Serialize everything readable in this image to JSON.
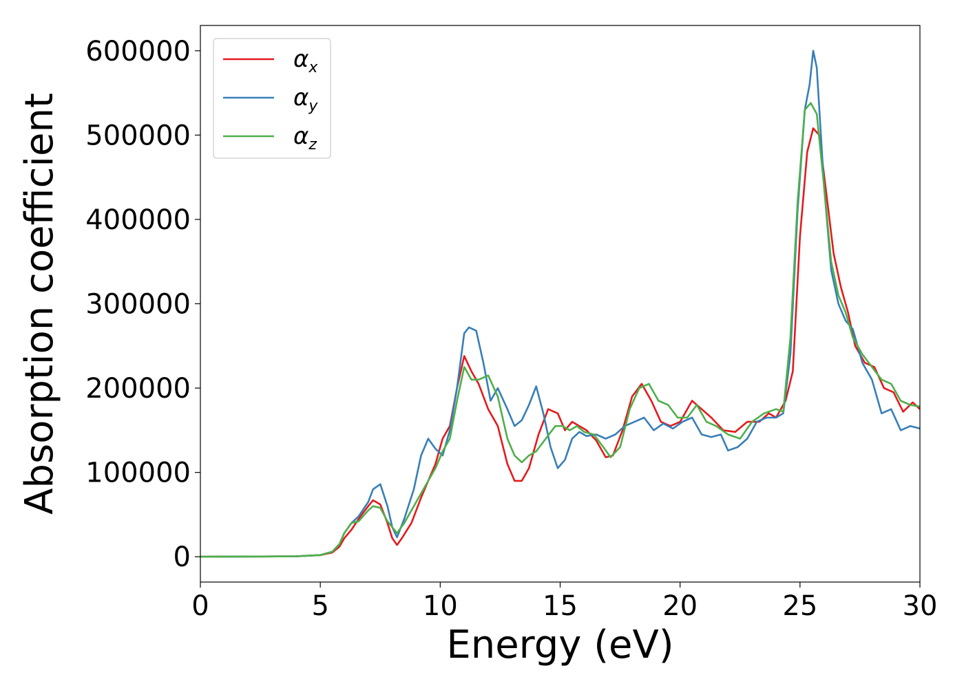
{
  "chart_data": {
    "type": "line",
    "title": "",
    "xlabel": "Energy (eV)",
    "ylabel": "Absorption coefficient",
    "xlim": [
      0,
      30
    ],
    "ylim": [
      -30000,
      630000
    ],
    "xticks": [
      0,
      5,
      10,
      15,
      20,
      25,
      30
    ],
    "yticks": [
      0,
      100000,
      200000,
      300000,
      400000,
      500000,
      600000
    ],
    "grid": false,
    "legend_position": "top-left",
    "series": [
      {
        "name": "α",
        "subscript": "x",
        "color": "#e41a1c",
        "x": [
          0,
          4,
          5,
          5.5,
          5.8,
          6.0,
          6.3,
          6.6,
          7.0,
          7.2,
          7.5,
          7.8,
          8.0,
          8.2,
          8.4,
          8.8,
          9.2,
          9.5,
          9.8,
          10.1,
          10.4,
          10.7,
          11.0,
          11.3,
          11.6,
          12.0,
          12.4,
          12.8,
          13.1,
          13.4,
          13.7,
          14.1,
          14.5,
          14.9,
          15.2,
          15.5,
          15.8,
          16.1,
          16.5,
          16.9,
          17.2,
          17.6,
          18.0,
          18.4,
          18.8,
          19.2,
          19.6,
          20.0,
          20.5,
          20.9,
          21.3,
          21.8,
          22.3,
          22.8,
          23.3,
          23.7,
          24.0,
          24.4,
          24.7,
          25.0,
          25.3,
          25.55,
          25.8,
          26.1,
          26.4,
          26.7,
          27.0,
          27.3,
          27.7,
          28.1,
          28.5,
          28.9,
          29.3,
          29.7,
          30.0
        ],
        "y": [
          0,
          500,
          2000,
          5000,
          12000,
          22000,
          32000,
          45000,
          60000,
          67000,
          62000,
          40000,
          22000,
          14000,
          22000,
          40000,
          70000,
          90000,
          110000,
          140000,
          155000,
          200000,
          238000,
          220000,
          205000,
          175000,
          155000,
          110000,
          90000,
          90000,
          105000,
          145000,
          175000,
          170000,
          150000,
          160000,
          155000,
          150000,
          138000,
          118000,
          120000,
          150000,
          190000,
          205000,
          185000,
          160000,
          155000,
          160000,
          185000,
          175000,
          165000,
          150000,
          148000,
          160000,
          160000,
          170000,
          165000,
          185000,
          220000,
          380000,
          480000,
          508000,
          500000,
          430000,
          360000,
          320000,
          290000,
          250000,
          230000,
          225000,
          200000,
          195000,
          172000,
          183000,
          175000
        ]
      },
      {
        "name": "α",
        "subscript": "y",
        "color": "#377eb8",
        "x": [
          0,
          4,
          5,
          5.5,
          5.8,
          6.0,
          6.3,
          6.6,
          7.0,
          7.2,
          7.5,
          7.8,
          8.0,
          8.2,
          8.5,
          8.9,
          9.2,
          9.5,
          9.8,
          10.1,
          10.4,
          10.7,
          11.0,
          11.2,
          11.5,
          11.8,
          12.1,
          12.4,
          12.8,
          13.1,
          13.4,
          13.7,
          14.0,
          14.3,
          14.6,
          14.9,
          15.2,
          15.5,
          15.8,
          16.1,
          16.5,
          16.9,
          17.3,
          17.7,
          18.1,
          18.5,
          18.9,
          19.3,
          19.7,
          20.1,
          20.5,
          20.9,
          21.3,
          21.7,
          22.0,
          22.4,
          22.8,
          23.2,
          23.6,
          24.0,
          24.3,
          24.6,
          24.9,
          25.2,
          25.4,
          25.55,
          25.7,
          26.0,
          26.3,
          26.6,
          26.9,
          27.2,
          27.6,
          28.0,
          28.4,
          28.8,
          29.2,
          29.6,
          30.0
        ],
        "y": [
          0,
          500,
          2000,
          6000,
          15000,
          28000,
          40000,
          48000,
          65000,
          80000,
          86000,
          60000,
          35000,
          23000,
          45000,
          80000,
          120000,
          140000,
          128000,
          120000,
          150000,
          200000,
          265000,
          272000,
          268000,
          230000,
          185000,
          200000,
          175000,
          155000,
          162000,
          180000,
          202000,
          170000,
          130000,
          105000,
          115000,
          140000,
          148000,
          143000,
          145000,
          140000,
          145000,
          155000,
          160000,
          165000,
          150000,
          158000,
          152000,
          160000,
          165000,
          145000,
          142000,
          145000,
          126000,
          130000,
          140000,
          160000,
          165000,
          165000,
          170000,
          240000,
          410000,
          530000,
          560000,
          600000,
          580000,
          440000,
          340000,
          300000,
          280000,
          270000,
          230000,
          210000,
          170000,
          175000,
          150000,
          155000,
          152000
        ]
      },
      {
        "name": "α",
        "subscript": "z",
        "color": "#4daf4a",
        "x": [
          0,
          4,
          5,
          5.5,
          5.8,
          6.0,
          6.3,
          6.6,
          7.0,
          7.2,
          7.5,
          7.8,
          8.0,
          8.2,
          8.5,
          8.9,
          9.2,
          9.5,
          9.8,
          10.1,
          10.4,
          10.7,
          11.0,
          11.3,
          11.6,
          12.0,
          12.4,
          12.8,
          13.1,
          13.4,
          13.7,
          14.0,
          14.4,
          14.8,
          15.1,
          15.4,
          15.7,
          16.0,
          16.4,
          16.8,
          17.1,
          17.5,
          17.9,
          18.3,
          18.7,
          19.1,
          19.5,
          19.9,
          20.3,
          20.7,
          21.1,
          21.5,
          22.0,
          22.5,
          23.0,
          23.5,
          24.0,
          24.3,
          24.6,
          24.9,
          25.2,
          25.45,
          25.7,
          26.0,
          26.3,
          26.6,
          26.9,
          27.2,
          27.6,
          28.0,
          28.4,
          28.8,
          29.2,
          29.6,
          30.0
        ],
        "y": [
          0,
          500,
          2000,
          6000,
          15000,
          28000,
          40000,
          42000,
          55000,
          60000,
          58000,
          42000,
          35000,
          28000,
          40000,
          60000,
          75000,
          90000,
          105000,
          125000,
          140000,
          185000,
          225000,
          210000,
          210000,
          215000,
          190000,
          140000,
          120000,
          112000,
          120000,
          125000,
          140000,
          155000,
          155000,
          150000,
          155000,
          148000,
          145000,
          130000,
          118000,
          130000,
          175000,
          200000,
          205000,
          185000,
          180000,
          165000,
          165000,
          180000,
          160000,
          155000,
          145000,
          140000,
          160000,
          170000,
          175000,
          172000,
          260000,
          420000,
          530000,
          538000,
          525000,
          440000,
          350000,
          310000,
          290000,
          260000,
          240000,
          225000,
          210000,
          205000,
          185000,
          180000,
          178000
        ]
      }
    ]
  }
}
